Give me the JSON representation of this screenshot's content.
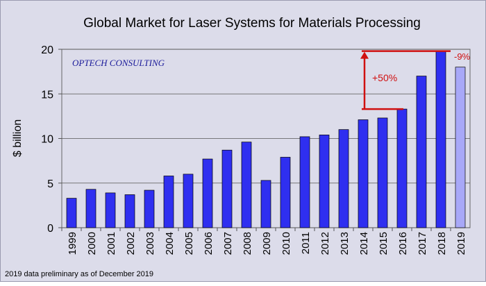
{
  "chart_data": {
    "type": "bar",
    "title": "Global Market for Laser Systems for Materials Processing",
    "ylabel": "$ billion",
    "xlabel": "",
    "ylim": [
      0,
      20
    ],
    "yticks": [
      0,
      5,
      10,
      15,
      20
    ],
    "grid": true,
    "categories": [
      "1999",
      "2000",
      "2001",
      "2002",
      "2003",
      "2004",
      "2005",
      "2006",
      "2007",
      "2008",
      "2009",
      "2010",
      "2011",
      "2012",
      "2013",
      "2014",
      "2015",
      "2016",
      "2017",
      "2018",
      "2019"
    ],
    "values": [
      3.3,
      4.3,
      3.9,
      3.7,
      4.2,
      5.8,
      6.0,
      7.7,
      8.7,
      9.6,
      5.3,
      7.9,
      10.2,
      10.4,
      11.0,
      12.1,
      12.3,
      13.3,
      17.0,
      19.8,
      18.0
    ],
    "preliminary_index": 20,
    "colors": {
      "bar": "#2f2ff0",
      "bar_preliminary": "#a8a8f8",
      "annotation": "#d01010",
      "plot_bg": "#dcdcea"
    },
    "annotations": {
      "growth_label": "+50%",
      "growth_from_value": 13.3,
      "growth_to_value": 19.8,
      "decline_label": "-9%"
    },
    "watermark": "OPTECH CONSULTING",
    "footnote": "2019 data preliminary as of December 2019"
  }
}
